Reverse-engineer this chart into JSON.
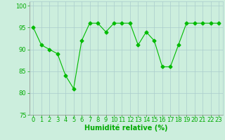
{
  "x": [
    0,
    1,
    2,
    3,
    4,
    5,
    6,
    7,
    8,
    9,
    10,
    11,
    12,
    13,
    14,
    15,
    16,
    17,
    18,
    19,
    20,
    21,
    22,
    23
  ],
  "y": [
    95,
    91,
    90,
    89,
    84,
    81,
    92,
    96,
    96,
    94,
    96,
    96,
    96,
    91,
    94,
    92,
    86,
    86,
    91,
    96,
    96,
    96,
    96,
    96
  ],
  "line_color": "#00bb00",
  "marker": "D",
  "marker_size": 2.5,
  "bg_color": "#cceedd",
  "grid_color": "#aacccc",
  "xlabel": "Humidité relative (%)",
  "xlabel_color": "#00aa00",
  "xlabel_fontsize": 7,
  "tick_color": "#00aa00",
  "tick_fontsize": 6,
  "ylim": [
    75,
    101
  ],
  "xlim": [
    -0.5,
    23.5
  ],
  "yticks": [
    75,
    80,
    85,
    90,
    95,
    100
  ],
  "xticks": [
    0,
    1,
    2,
    3,
    4,
    5,
    6,
    7,
    8,
    9,
    10,
    11,
    12,
    13,
    14,
    15,
    16,
    17,
    18,
    19,
    20,
    21,
    22,
    23
  ]
}
